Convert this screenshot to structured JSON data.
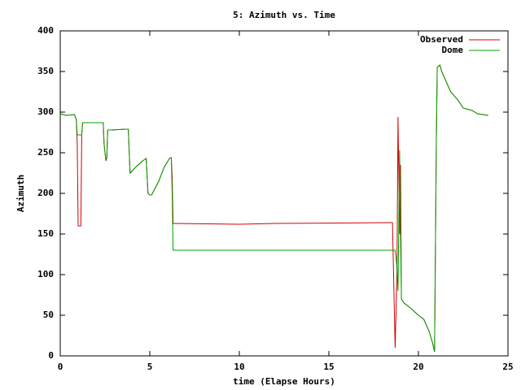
{
  "chart_data": {
    "type": "line",
    "title": "5: Azimuth vs. Time",
    "x_label": "time (Elapse Hours)",
    "y_label": "Azimuth",
    "xlim": [
      0,
      25
    ],
    "xticks": [
      0,
      5,
      10,
      15,
      20,
      25
    ],
    "ylim": [
      0,
      400
    ],
    "yticks": [
      0,
      50,
      100,
      150,
      200,
      250,
      300,
      350,
      400
    ],
    "grid": false,
    "legend": "top-right",
    "x": [
      0,
      0.3,
      0.8,
      0.9,
      0.95,
      1.0,
      1.05,
      1.15,
      1.2,
      1.25,
      1.5,
      2.4,
      2.45,
      2.55,
      2.6,
      2.65,
      2.8,
      3.7,
      3.8,
      3.9,
      4.2,
      4.6,
      4.8,
      4.9,
      5.0,
      5.1,
      5.5,
      5.8,
      6.1,
      6.2,
      6.25,
      6.3,
      6.35,
      10,
      12,
      18.5,
      18.55,
      18.7,
      18.8,
      18.86,
      18.95,
      19.0,
      19.05,
      19.2,
      19.5,
      20.0,
      20.3,
      20.6,
      20.8,
      20.9,
      21.0,
      21.05,
      21.2,
      21.3,
      21.5,
      21.8,
      22.2,
      22.5,
      23.0,
      23.3,
      23.6,
      23.9
    ],
    "series": [
      {
        "name": "Observed",
        "color": "#d00000",
        "values": [
          298,
          296,
          297,
          290,
          260,
          160,
          160,
          160,
          272,
          287,
          287,
          287,
          260,
          240,
          243,
          278,
          278,
          279,
          279,
          225,
          232,
          240,
          243,
          200,
          198,
          198,
          215,
          232,
          243,
          244,
          220,
          163,
          163,
          162,
          163,
          164,
          164,
          10,
          100,
          294,
          150,
          235,
          70,
          65,
          60,
          50,
          45,
          30,
          15,
          5,
          265,
          355,
          358,
          350,
          340,
          325,
          315,
          305,
          302,
          298,
          297,
          296
        ]
      },
      {
        "name": "Dome",
        "color": "#00a000",
        "values": [
          298,
          296,
          297,
          290,
          272,
          272,
          272,
          272,
          272,
          287,
          287,
          287,
          260,
          240,
          243,
          278,
          278,
          279,
          279,
          225,
          232,
          240,
          243,
          200,
          198,
          198,
          215,
          232,
          243,
          244,
          200,
          130,
          130,
          130,
          130,
          130,
          130,
          130,
          110,
          80,
          253,
          150,
          70,
          65,
          60,
          50,
          45,
          30,
          15,
          5,
          265,
          355,
          358,
          350,
          340,
          325,
          315,
          305,
          302,
          298,
          297,
          296
        ]
      }
    ]
  }
}
